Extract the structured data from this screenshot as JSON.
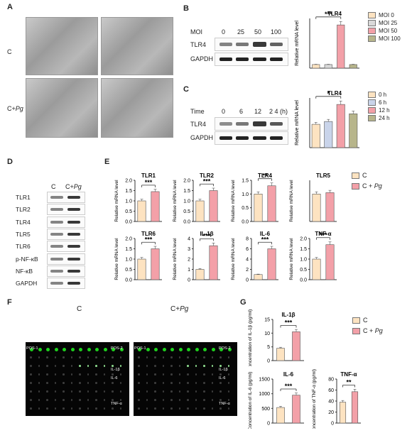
{
  "panels": {
    "A": "A",
    "B": "B",
    "C": "C",
    "D": "D",
    "E": "E",
    "F": "F",
    "G": "G"
  },
  "colors": {
    "c": "#fde3c1",
    "pg": "#f3a0a8",
    "moi25": "#d9d9d9",
    "moi50": "#f3a0a8",
    "moi100": "#b7b58b",
    "h0": "#fde3c1",
    "h6": "#c9d4ea",
    "h12": "#f3a0a8",
    "h24": "#b7b58b",
    "spot": "#1ed21e"
  },
  "panelA": {
    "row_c": "C",
    "row_pg_prefix": "C+",
    "row_pg_italic": "Pg"
  },
  "panelB": {
    "moi_label": "MOI",
    "moi_values": [
      "0",
      "25",
      "50",
      "100"
    ],
    "rows": [
      "TLR4",
      "GAPDH"
    ],
    "chart_data": {
      "type": "bar",
      "title": "TLR4",
      "ylabel": "Relative mRNA level",
      "categories": [
        "MOI 0",
        "MOI 25",
        "MOI 50",
        "MOI 100"
      ],
      "values": [
        1.0,
        1.0,
        12.0,
        1.0
      ],
      "significance": "***"
    },
    "legend": [
      "MOI 0",
      "MOI 25",
      "MOI 50",
      "MOI 100"
    ]
  },
  "panelC": {
    "time_label": "Time",
    "time_values": [
      "0",
      "6",
      "12",
      "2 4 (h)"
    ],
    "rows": [
      "TLR4",
      "GAPDH"
    ],
    "chart_data": {
      "type": "bar",
      "title": "TLR4",
      "ylabel": "Relative mRNA level",
      "categories": [
        "0 h",
        "6 h",
        "12 h",
        "24 h"
      ],
      "values": [
        1.0,
        1.12,
        1.85,
        1.45
      ],
      "significance": "*"
    },
    "legend": [
      "0 h",
      "6 h",
      "12 h",
      "24 h"
    ]
  },
  "panelD": {
    "col_c": "C",
    "col_pg_prefix": "C+",
    "col_pg_italic": "Pg",
    "rows": [
      "TLR1",
      "TLR2",
      "TLR4",
      "TLR5",
      "TLR6",
      "p-NF-κB",
      "NF-κB",
      "GAPDH"
    ]
  },
  "panelE": {
    "legend": {
      "c": "C",
      "pg_prefix": "C + ",
      "pg_italic": "Pg"
    },
    "chart_data": [
      {
        "type": "bar",
        "title": "TLR1",
        "ylabel": "Relative mRNA level",
        "categories": [
          "C",
          "C + Pg"
        ],
        "values": [
          1.0,
          1.45
        ],
        "ylim": [
          0,
          2.0
        ],
        "yticks": [
          "0.0",
          "0.5",
          "1.0",
          "1.5",
          "2.0"
        ],
        "significance": "***"
      },
      {
        "type": "bar",
        "title": "TLR2",
        "ylabel": "Relative mRNA level",
        "categories": [
          "C",
          "C + Pg"
        ],
        "values": [
          1.0,
          1.5
        ],
        "ylim": [
          0,
          2.0
        ],
        "yticks": [
          "0.0",
          "0.5",
          "1.0",
          "1.5",
          "2.0"
        ],
        "significance": "***"
      },
      {
        "type": "bar",
        "title": "TLR4",
        "ylabel": "Relative mRNA level",
        "categories": [
          "C",
          "C + Pg"
        ],
        "values": [
          1.0,
          1.3
        ],
        "ylim": [
          0,
          1.5
        ],
        "yticks": [
          "0.0",
          "0.5",
          "1.0",
          "1.5"
        ],
        "significance": "**"
      },
      {
        "type": "bar",
        "title": "TLR5",
        "ylabel": "Relative mRNA level",
        "categories": [
          "C",
          "C + Pg"
        ],
        "values": [
          1.0,
          1.05
        ],
        "ylim": [
          0,
          1.5
        ],
        "yticks": [],
        "significance": ""
      },
      {
        "type": "bar",
        "title": "TLR6",
        "ylabel": "Relative mRNA level",
        "categories": [
          "C",
          "C + Pg"
        ],
        "values": [
          1.0,
          1.5
        ],
        "ylim": [
          0,
          2.0
        ],
        "yticks": [
          "0.0",
          "0.5",
          "1.0",
          "1.5",
          "2.0"
        ],
        "significance": "***"
      },
      {
        "type": "bar",
        "title": "IL-1β",
        "ylabel": "Relative mRNA level",
        "categories": [
          "C",
          "C + Pg"
        ],
        "values": [
          1.0,
          3.3
        ],
        "ylim": [
          0,
          4
        ],
        "yticks": [
          "0",
          "1",
          "2",
          "3",
          "4"
        ],
        "significance": "***"
      },
      {
        "type": "bar",
        "title": "IL-6",
        "ylabel": "Relative mRNA level",
        "categories": [
          "C",
          "C + Pg"
        ],
        "values": [
          1.0,
          6.0
        ],
        "ylim": [
          0,
          8
        ],
        "yticks": [
          "0",
          "2",
          "4",
          "6",
          "8"
        ],
        "significance": "***"
      },
      {
        "type": "bar",
        "title": "TNF-α",
        "ylabel": "Relative mRNA level",
        "categories": [
          "C",
          "C + Pg"
        ],
        "values": [
          1.0,
          1.7
        ],
        "ylim": [
          0,
          2.0
        ],
        "yticks": [
          "0.0",
          "0.5",
          "1.0",
          "1.5",
          "2.0"
        ],
        "significance": "***"
      }
    ]
  },
  "panelF": {
    "title_c": "C",
    "title_pg_prefix": "C+",
    "title_pg_italic": "Pg",
    "labels": [
      "POS-1",
      "POS-2",
      "IL-1β",
      "IL-6",
      "TNF-α"
    ]
  },
  "panelG": {
    "legend": {
      "c": "C",
      "pg_prefix": "C + ",
      "pg_italic": "Pg"
    },
    "chart_data": [
      {
        "type": "bar",
        "title": "IL-1β",
        "ylabel": "Concentration of IL-1β (pg/ml)",
        "categories": [
          "C",
          "C + Pg"
        ],
        "values": [
          4.5,
          10.5
        ],
        "ylim": [
          0,
          15
        ],
        "yticks": [
          "0",
          "5",
          "10",
          "15"
        ],
        "significance": "***"
      },
      {
        "type": "bar",
        "title": "IL-6",
        "ylabel": "Concentration of IL-6 (pg/ml)",
        "categories": [
          "C",
          "C + Pg"
        ],
        "values": [
          530,
          950
        ],
        "ylim": [
          0,
          1500
        ],
        "yticks": [
          "0",
          "500",
          "1000",
          "1500"
        ],
        "significance": "***"
      },
      {
        "type": "bar",
        "title": "TNF-α",
        "ylabel": "Concentration of TNF-α (pg/ml)",
        "categories": [
          "C",
          "C + Pg"
        ],
        "values": [
          38,
          57
        ],
        "ylim": [
          0,
          80
        ],
        "yticks": [
          "0",
          "20",
          "40",
          "60",
          "80"
        ],
        "significance": "**"
      }
    ]
  }
}
